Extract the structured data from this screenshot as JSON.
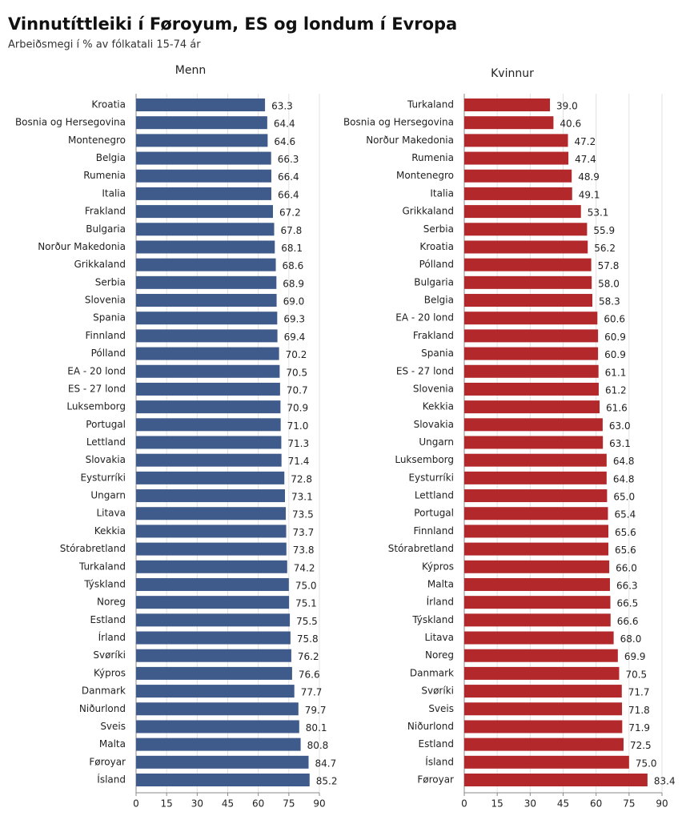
{
  "title": "Vinnutíttleiki í Føroyum, ES og londum í Evropa",
  "subtitle": "Arbeiðsmegi í % av fólkatali 15-74 ár",
  "chart_data": [
    {
      "type": "bar",
      "orientation": "horizontal",
      "title": "Menn",
      "color": "#3e5b8c",
      "categories": [
        "Kroatia",
        "Bosnia og Hersegovina",
        "Montenegro",
        "Belgia",
        "Rumenia",
        "Italia",
        "Frakland",
        "Bulgaria",
        "Norður Makedonia",
        "Grikkaland",
        "Serbia",
        "Slovenia",
        "Spania",
        "Finnland",
        "Pólland",
        "EA - 20 lond",
        "ES - 27 lond",
        "Luksemborg",
        "Portugal",
        "Lettland",
        "Slovakia",
        "Eysturríki",
        "Ungarn",
        "Litava",
        "Kekkia",
        "Stórabretland",
        "Turkaland",
        "Týskland",
        "Noreg",
        "Estland",
        "Írland",
        "Svøríki",
        "Kýpros",
        "Danmark",
        "Niðurlond",
        "Sveis",
        "Malta",
        "Føroyar",
        "Ísland"
      ],
      "values": [
        63.3,
        64.4,
        64.6,
        66.3,
        66.4,
        66.4,
        67.2,
        67.8,
        68.1,
        68.6,
        68.9,
        69.0,
        69.3,
        69.4,
        70.2,
        70.5,
        70.7,
        70.9,
        71.0,
        71.3,
        71.4,
        72.8,
        73.1,
        73.5,
        73.7,
        73.8,
        74.2,
        75.0,
        75.1,
        75.5,
        75.8,
        76.2,
        76.6,
        77.7,
        79.7,
        80.1,
        80.8,
        84.7,
        85.2
      ],
      "value_labels": [
        "63.3",
        "64.4",
        "64.6",
        "66.3",
        "66.4",
        "66.4",
        "67.2",
        "67.8",
        "68.1",
        "68.6",
        "68.9",
        "69.0",
        "69.3",
        "69.4",
        "70.2",
        "70.5",
        "70.7",
        "70.9",
        "71.0",
        "71.3",
        "71.4",
        "72.8",
        "73.1",
        "73.5",
        "73.7",
        "73.8",
        "74.2",
        "75.0",
        "75.1",
        "75.5",
        "75.8",
        "76.2",
        "76.6",
        "77.7",
        "79.7",
        "80.1",
        "80.8",
        "84.7",
        "85.2"
      ],
      "xlim": [
        0,
        90
      ],
      "xticks": [
        0,
        15,
        30,
        45,
        60,
        75,
        90
      ],
      "grid": true
    },
    {
      "type": "bar",
      "orientation": "horizontal",
      "title": "Kvinnur",
      "color": "#b3282a",
      "categories": [
        "Turkaland",
        "Bosnia og Hersegovina",
        "Norður Makedonia",
        "Rumenia",
        "Montenegro",
        "Italia",
        "Grikkaland",
        "Serbia",
        "Kroatia",
        "Pólland",
        "Bulgaria",
        "Belgia",
        "EA - 20 lond",
        "Frakland",
        "Spania",
        "ES - 27 lond",
        "Slovenia",
        "Kekkia",
        "Slovakia",
        "Ungarn",
        "Luksemborg",
        "Eysturríki",
        "Lettland",
        "Portugal",
        "Finnland",
        "Stórabretland",
        "Kýpros",
        "Malta",
        "Írland",
        "Týskland",
        "Litava",
        "Noreg",
        "Danmark",
        "Svøríki",
        "Sveis",
        "Niðurlond",
        "Estland",
        "Ísland",
        "Føroyar"
      ],
      "values": [
        39.0,
        40.6,
        47.2,
        47.4,
        48.9,
        49.1,
        53.1,
        55.9,
        56.2,
        57.8,
        58.0,
        58.3,
        60.6,
        60.9,
        60.9,
        61.1,
        61.2,
        61.6,
        63.0,
        63.1,
        64.8,
        64.8,
        65.0,
        65.4,
        65.6,
        65.6,
        66.0,
        66.3,
        66.5,
        66.6,
        68.0,
        69.9,
        70.5,
        71.7,
        71.8,
        71.9,
        72.5,
        75.0,
        83.4
      ],
      "value_labels": [
        "39.0",
        "40.6",
        "47.2",
        "47.4",
        "48.9",
        "49.1",
        "53.1",
        "55.9",
        "56.2",
        "57.8",
        "58.0",
        "58.3",
        "60.6",
        "60.9",
        "60.9",
        "61.1",
        "61.2",
        "61.6",
        "63.0",
        "63.1",
        "64.8",
        "64.8",
        "65.0",
        "65.4",
        "65.6",
        "65.6",
        "66.0",
        "66.3",
        "66.5",
        "66.6",
        "68.0",
        "69.9",
        "70.5",
        "71.7",
        "71.8",
        "71.9",
        "72.5",
        "75.0",
        "83.4"
      ],
      "xlim": [
        0,
        90
      ],
      "xticks": [
        0,
        15,
        30,
        45,
        60,
        75,
        90
      ],
      "grid": true
    }
  ]
}
